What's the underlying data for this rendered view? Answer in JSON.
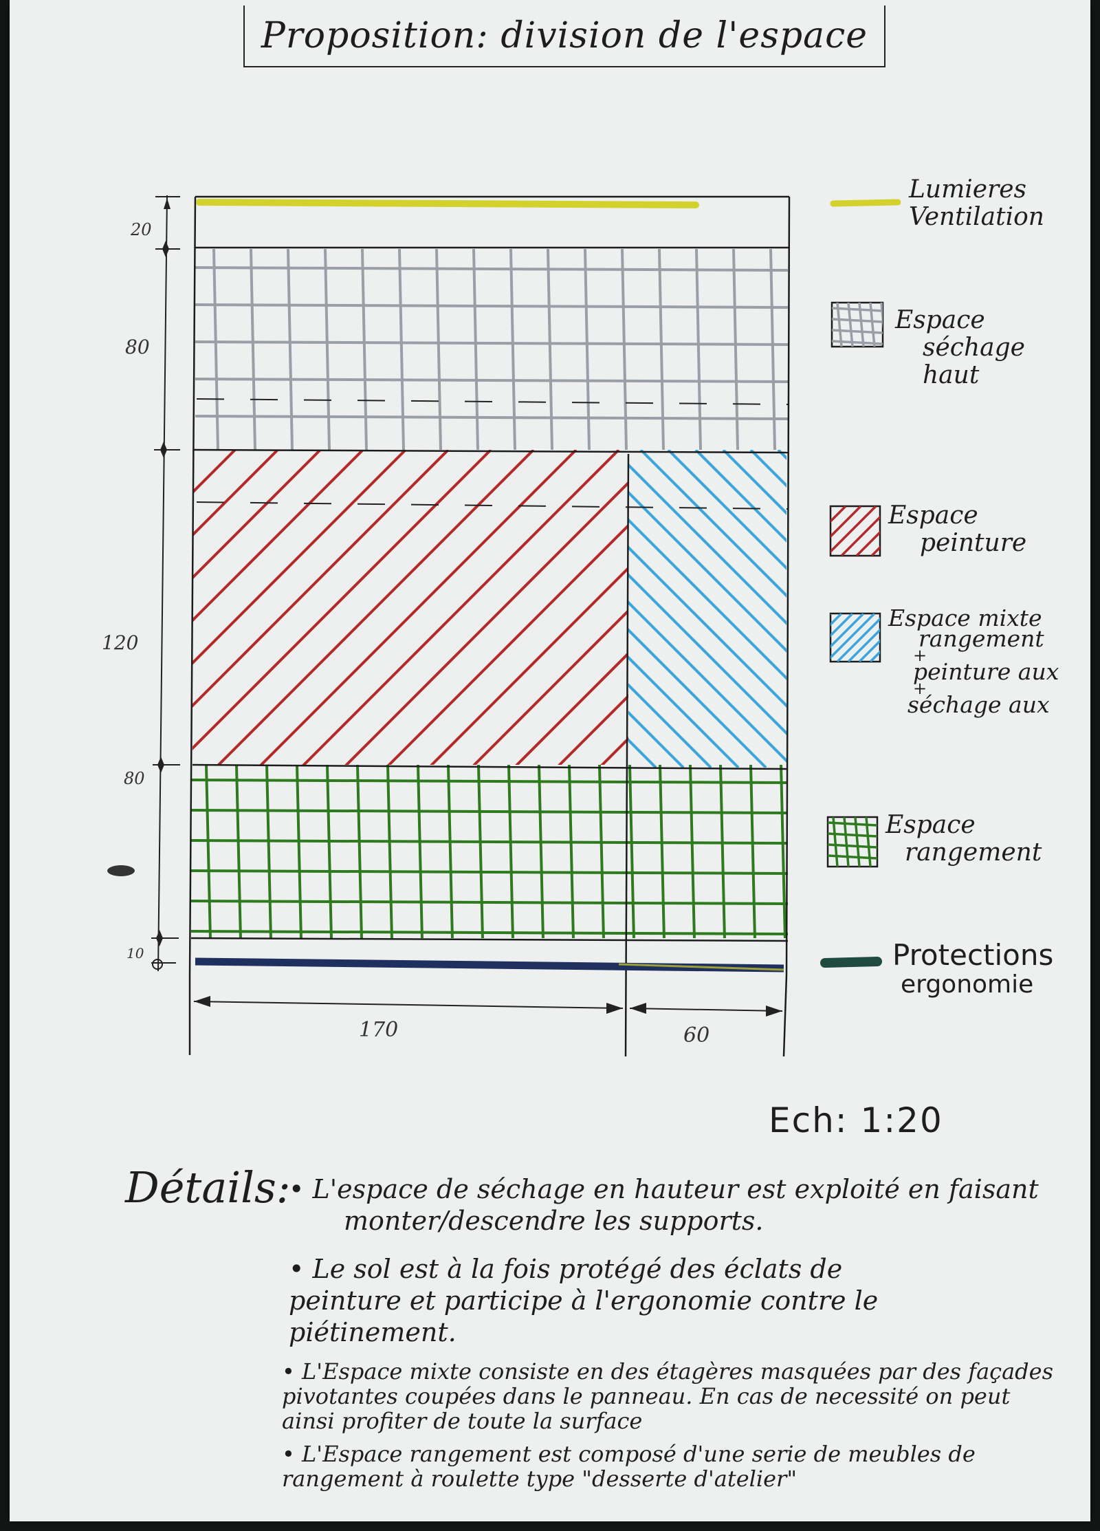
{
  "title": "Proposition: division de l'espace",
  "dimensions": {
    "vertical": [
      "20",
      "80",
      "120",
      "80",
      "10"
    ],
    "horizontal": [
      "170",
      "60"
    ]
  },
  "legend": [
    {
      "key": "lumieres",
      "lines": [
        "Lumieres",
        "Ventilation"
      ],
      "color": "#d3d12c"
    },
    {
      "key": "sechage",
      "lines": [
        "Espace",
        "séchage",
        "haut"
      ],
      "color": "#9a9ea6"
    },
    {
      "key": "peinture",
      "lines": [
        "Espace",
        "peinture"
      ],
      "color": "#b32a2a"
    },
    {
      "key": "mixte",
      "lines": [
        "Espace mixte",
        "rangement",
        "+",
        "peinture aux",
        "+",
        "séchage aux"
      ],
      "color": "#3aa6dc"
    },
    {
      "key": "rangement",
      "lines": [
        "Espace",
        "rangement"
      ],
      "color": "#2e7a1e"
    },
    {
      "key": "protections",
      "lines": [
        "Protections",
        "ergonomie"
      ],
      "color": "#1e4a40"
    }
  ],
  "scale": "Ech: 1:20",
  "details": {
    "heading": "Détails:",
    "items": [
      "L'espace de séchage en hauteur est exploité en faisant monter/descendre les supports.",
      "Le sol est à la fois protégé des éclats de peinture et participe à l'ergonomie contre le piétinement.",
      "L'Espace mixte consiste en des étagères masquées par des façades pivotantes coupées dans le panneau. En cas de necessité on peut ainsi profiter de toute la surface",
      "L'Espace rangement est composé d'une serie de meubles de rangement à roulette type \"desserte d'atelier\""
    ]
  }
}
